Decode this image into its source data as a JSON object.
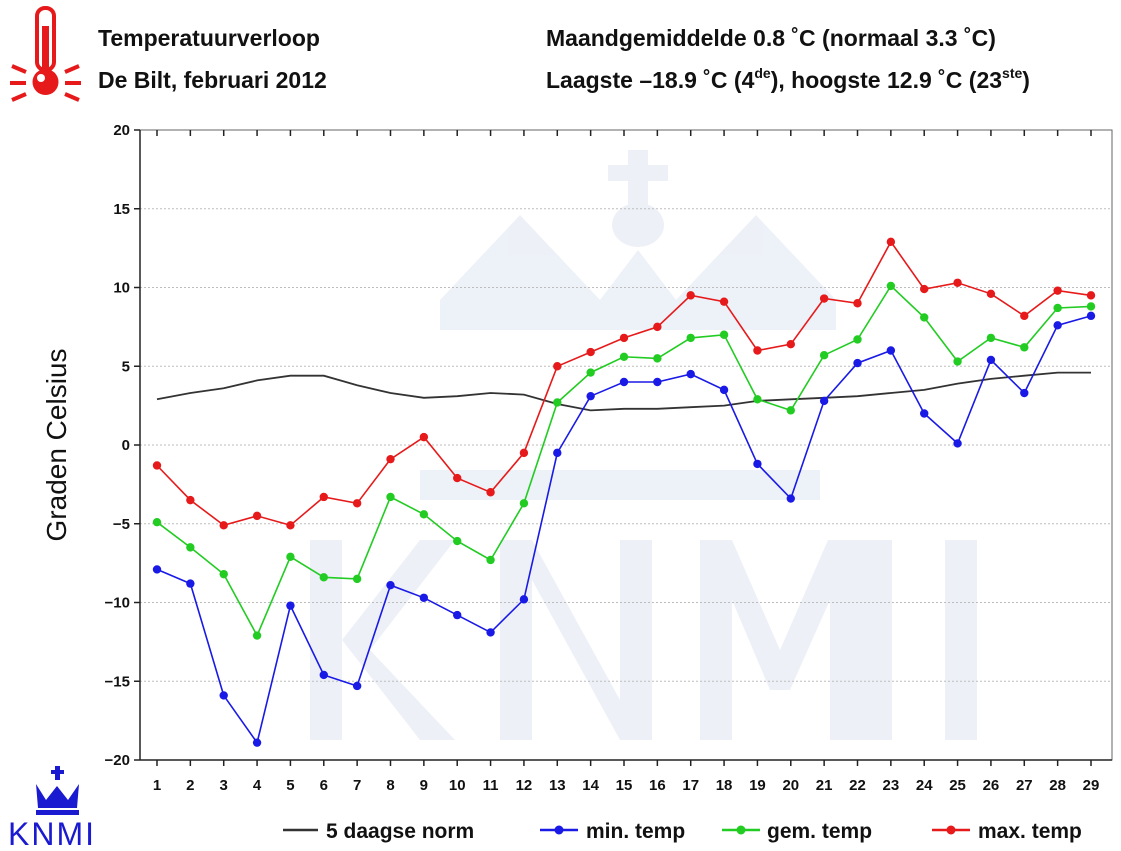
{
  "header": {
    "title_line1": "Temperatuurverloop",
    "title_line2": "De Bilt, februari 2012",
    "stats_line1": "Maandgemiddelde 0.8 ˚C (normaal 3.3 ˚C)",
    "stats_line2_a": "Laagste –18.9 ˚C (4",
    "stats_line2_sup1": "de",
    "stats_line2_b": "), hoogste 12.9 ˚C (23",
    "stats_line2_sup2": "ste",
    "stats_line2_c": ")"
  },
  "logo": {
    "text": "KNMI",
    "icon": "crown-icon"
  },
  "thermometer_icon": "thermometer-icon",
  "colors": {
    "norm": "#333333",
    "min": "#1a1ae6",
    "mean": "#22cc22",
    "max": "#e61a1a",
    "grid": "#bdbdbd",
    "logo": "#1a1ad0"
  },
  "chart_data": {
    "type": "line",
    "xlabel": "",
    "ylabel": "Graden Celsius",
    "ylim": [
      -20,
      20
    ],
    "yticks": [
      -20,
      -15,
      -10,
      -5,
      0,
      5,
      10,
      15,
      20
    ],
    "x": [
      1,
      2,
      3,
      4,
      5,
      6,
      7,
      8,
      9,
      10,
      11,
      12,
      13,
      14,
      15,
      16,
      17,
      18,
      19,
      20,
      21,
      22,
      23,
      24,
      25,
      26,
      27,
      28,
      29
    ],
    "grid": true,
    "legend_position": "bottom",
    "series": [
      {
        "name": "5 daagse norm",
        "key": "norm",
        "markers": false,
        "values": [
          2.9,
          3.3,
          3.6,
          4.1,
          4.4,
          4.4,
          3.8,
          3.3,
          3.0,
          3.1,
          3.3,
          3.2,
          2.6,
          2.2,
          2.3,
          2.3,
          2.4,
          2.5,
          2.8,
          2.9,
          3.0,
          3.1,
          3.3,
          3.5,
          3.9,
          4.2,
          4.4,
          4.6,
          4.6
        ]
      },
      {
        "name": "min. temp",
        "key": "min",
        "markers": true,
        "values": [
          -7.9,
          -8.8,
          -15.9,
          -18.9,
          -10.2,
          -14.6,
          -15.3,
          -8.9,
          -9.7,
          -10.8,
          -11.9,
          -9.8,
          -0.5,
          3.1,
          4.0,
          4.0,
          4.5,
          3.5,
          -1.2,
          -3.4,
          2.8,
          5.2,
          6.0,
          2.0,
          0.1,
          5.4,
          3.3,
          7.6,
          8.2
        ]
      },
      {
        "name": "gem. temp",
        "key": "mean",
        "markers": true,
        "values": [
          -4.9,
          -6.5,
          -8.2,
          -12.1,
          -7.1,
          -8.4,
          -8.5,
          -3.3,
          -4.4,
          -6.1,
          -7.3,
          -3.7,
          2.7,
          4.6,
          5.6,
          5.5,
          6.8,
          7.0,
          2.9,
          2.2,
          5.7,
          6.7,
          10.1,
          8.1,
          5.3,
          6.8,
          6.2,
          8.7,
          8.8
        ]
      },
      {
        "name": "max. temp",
        "key": "max",
        "markers": true,
        "values": [
          -1.3,
          -3.5,
          -5.1,
          -4.5,
          -5.1,
          -3.3,
          -3.7,
          -0.9,
          0.5,
          -2.1,
          -3.0,
          -0.5,
          5.0,
          5.9,
          6.8,
          7.5,
          9.5,
          9.1,
          6.0,
          6.4,
          9.3,
          9.0,
          12.9,
          9.9,
          10.3,
          9.6,
          8.2,
          9.8,
          9.5
        ]
      }
    ]
  }
}
